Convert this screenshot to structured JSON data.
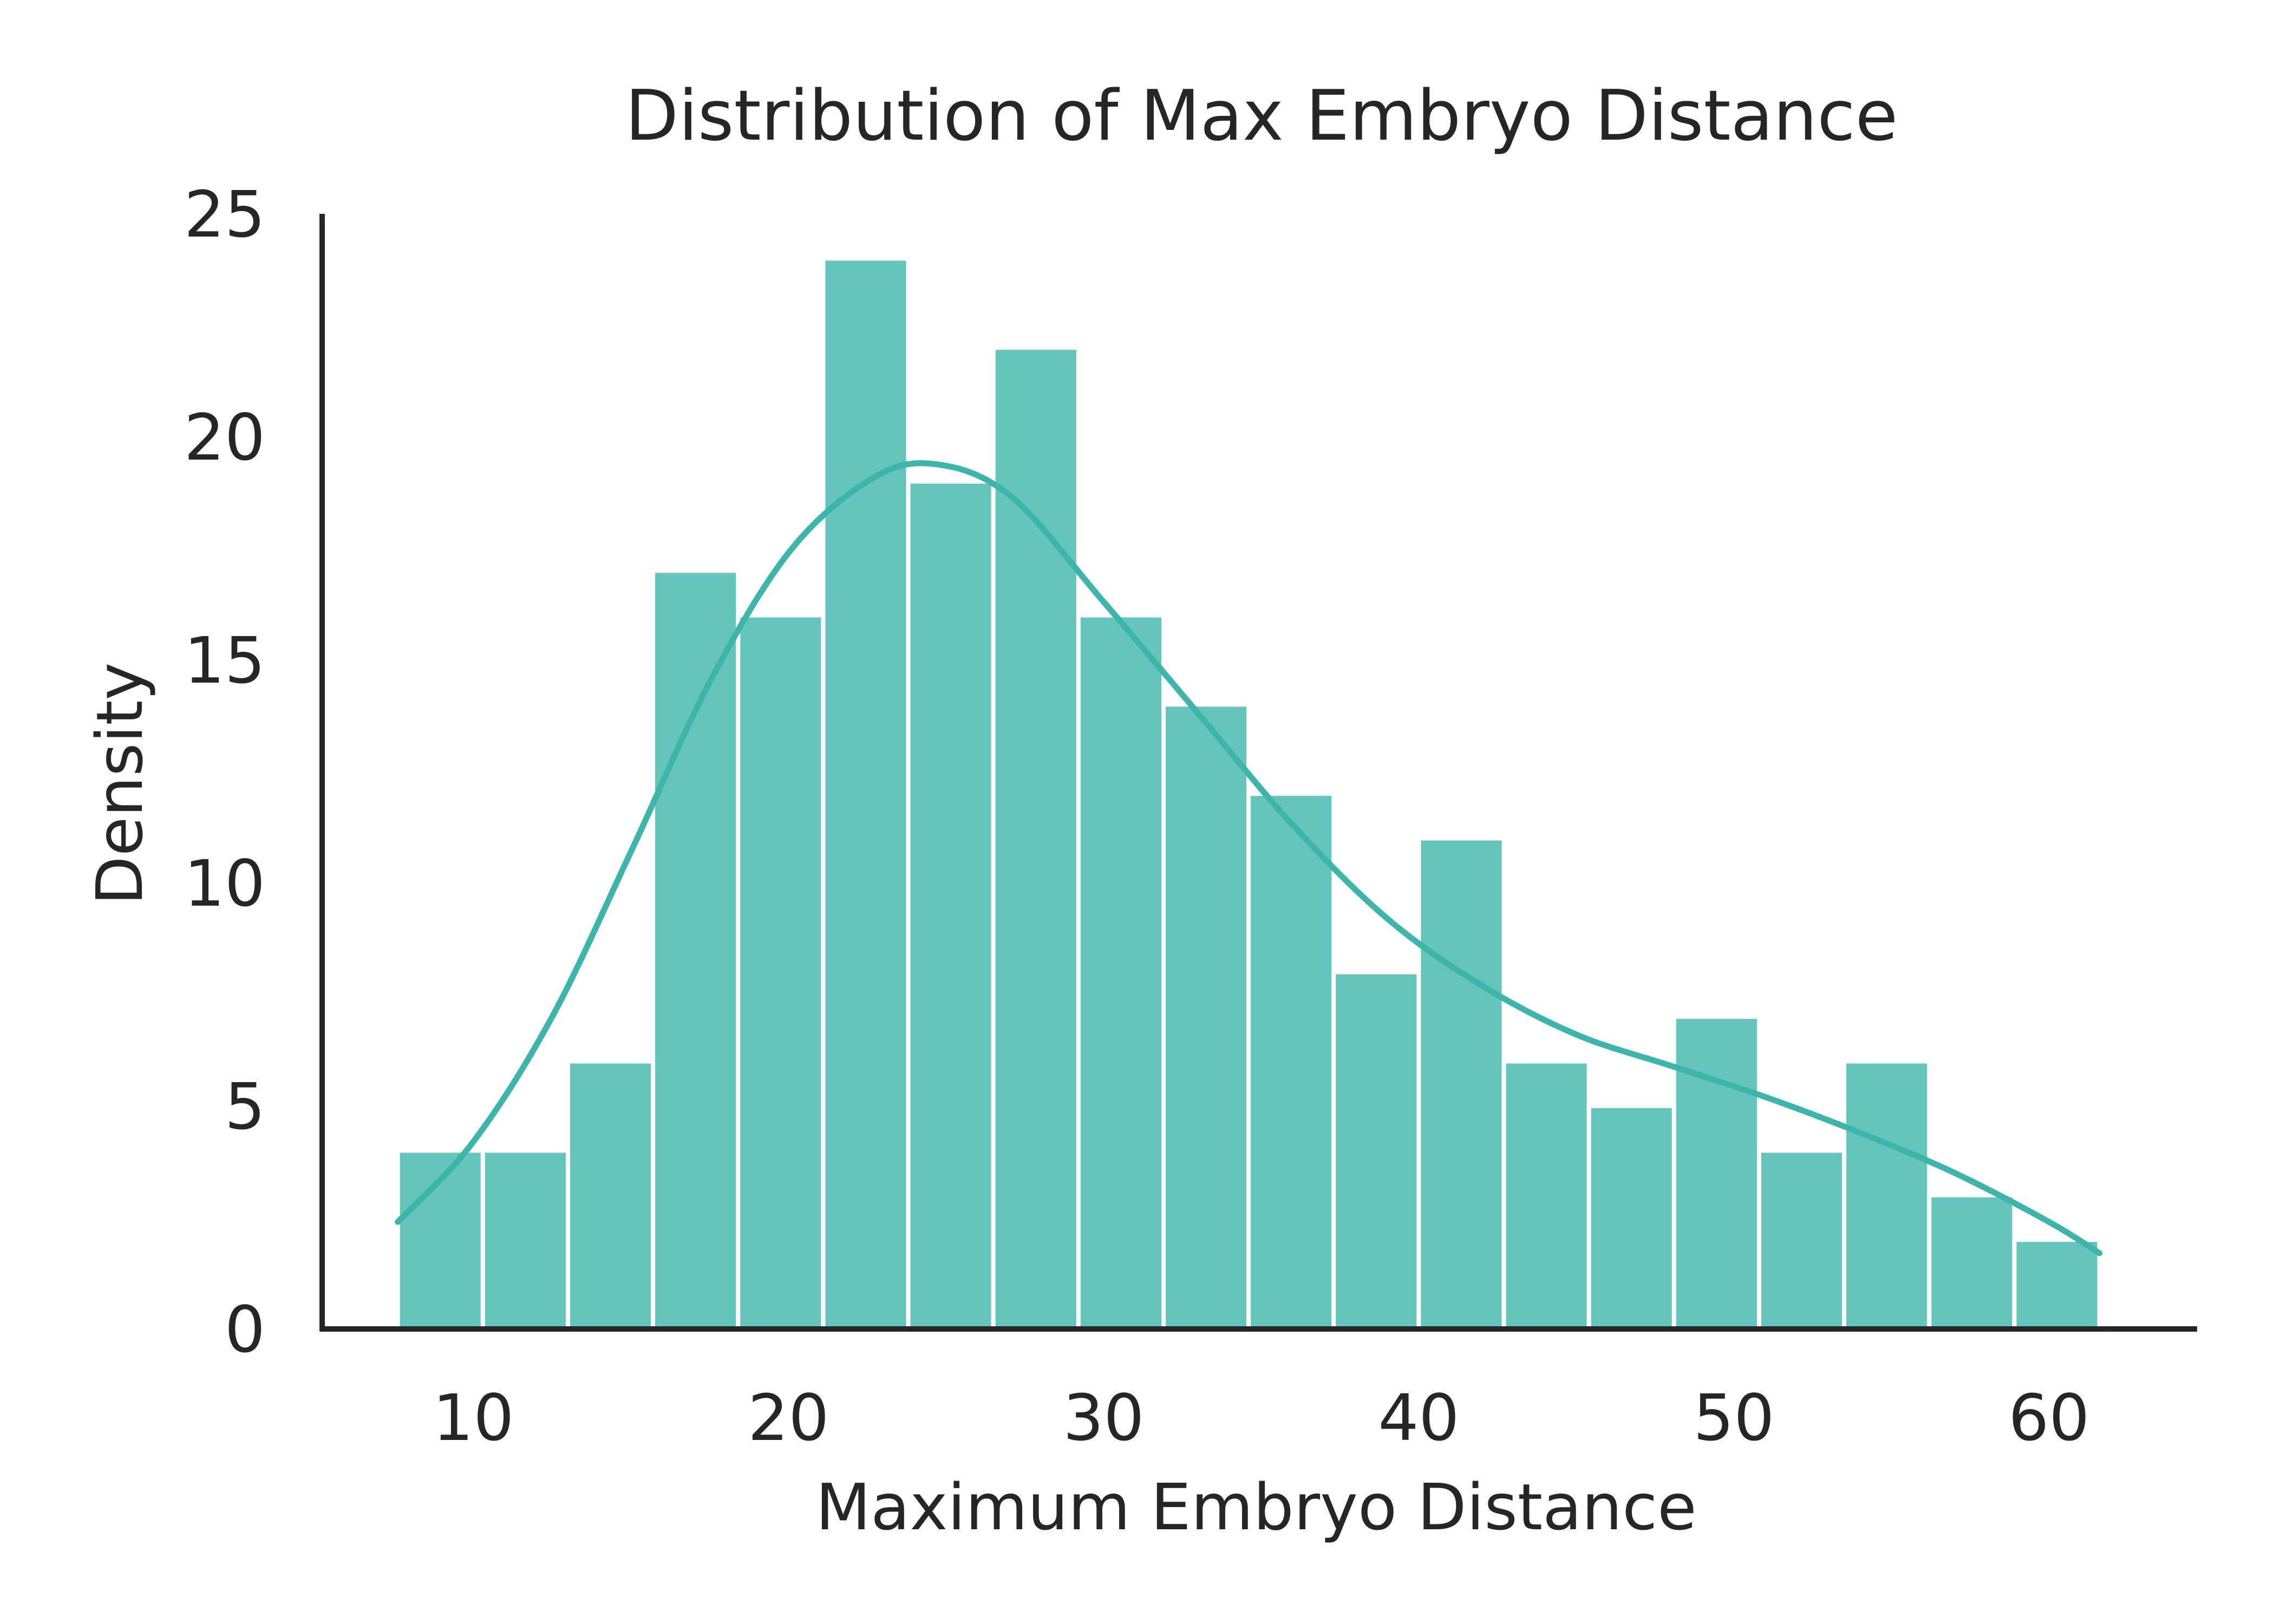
{
  "chart_data": {
    "type": "bar",
    "title": "Distribution of Max Embryo Distance",
    "xlabel": "Maximum Embryo Distance",
    "ylabel": "Density",
    "xlim": [
      5.2,
      64.7
    ],
    "ylim": [
      0,
      25
    ],
    "xticks": [
      10,
      20,
      30,
      40,
      50,
      60
    ],
    "yticks": [
      0,
      5,
      10,
      15,
      20,
      25
    ],
    "grid": false,
    "bar_color": "#3eb5aa",
    "bar_opacity": 0.8,
    "kde_color": "#3eb5aa",
    "bins": [
      {
        "x0": 7.6,
        "x1": 10.3,
        "value": 4
      },
      {
        "x0": 10.3,
        "x1": 13.0,
        "value": 4
      },
      {
        "x0": 13.0,
        "x1": 15.7,
        "value": 6
      },
      {
        "x0": 15.7,
        "x1": 18.4,
        "value": 17
      },
      {
        "x0": 18.4,
        "x1": 21.1,
        "value": 16
      },
      {
        "x0": 21.1,
        "x1": 23.8,
        "value": 24
      },
      {
        "x0": 23.8,
        "x1": 26.5,
        "value": 19
      },
      {
        "x0": 26.5,
        "x1": 29.2,
        "value": 22
      },
      {
        "x0": 29.2,
        "x1": 31.9,
        "value": 16
      },
      {
        "x0": 31.9,
        "x1": 34.6,
        "value": 14
      },
      {
        "x0": 34.6,
        "x1": 37.3,
        "value": 12
      },
      {
        "x0": 37.3,
        "x1": 40.0,
        "value": 8
      },
      {
        "x0": 40.0,
        "x1": 42.7,
        "value": 11
      },
      {
        "x0": 42.7,
        "x1": 45.4,
        "value": 6
      },
      {
        "x0": 45.4,
        "x1": 48.1,
        "value": 5
      },
      {
        "x0": 48.1,
        "x1": 50.8,
        "value": 7
      },
      {
        "x0": 50.8,
        "x1": 53.5,
        "value": 4
      },
      {
        "x0": 53.5,
        "x1": 56.2,
        "value": 6
      },
      {
        "x0": 56.2,
        "x1": 58.9,
        "value": 3
      },
      {
        "x0": 58.9,
        "x1": 61.6,
        "value": 2
      }
    ],
    "kde": {
      "x": [
        7.6,
        10.0,
        12.5,
        15.0,
        17.5,
        20.0,
        22.5,
        24.5,
        27.0,
        30.0,
        33.0,
        36.0,
        39.0,
        42.0,
        45.0,
        48.0,
        51.0,
        54.0,
        57.0,
        60.0,
        61.6
      ],
      "y": [
        2.4,
        4.2,
        7.0,
        10.7,
        14.5,
        17.4,
        19.0,
        19.4,
        18.7,
        16.3,
        13.8,
        11.3,
        9.2,
        7.7,
        6.6,
        5.9,
        5.2,
        4.4,
        3.5,
        2.4,
        1.7
      ]
    }
  }
}
